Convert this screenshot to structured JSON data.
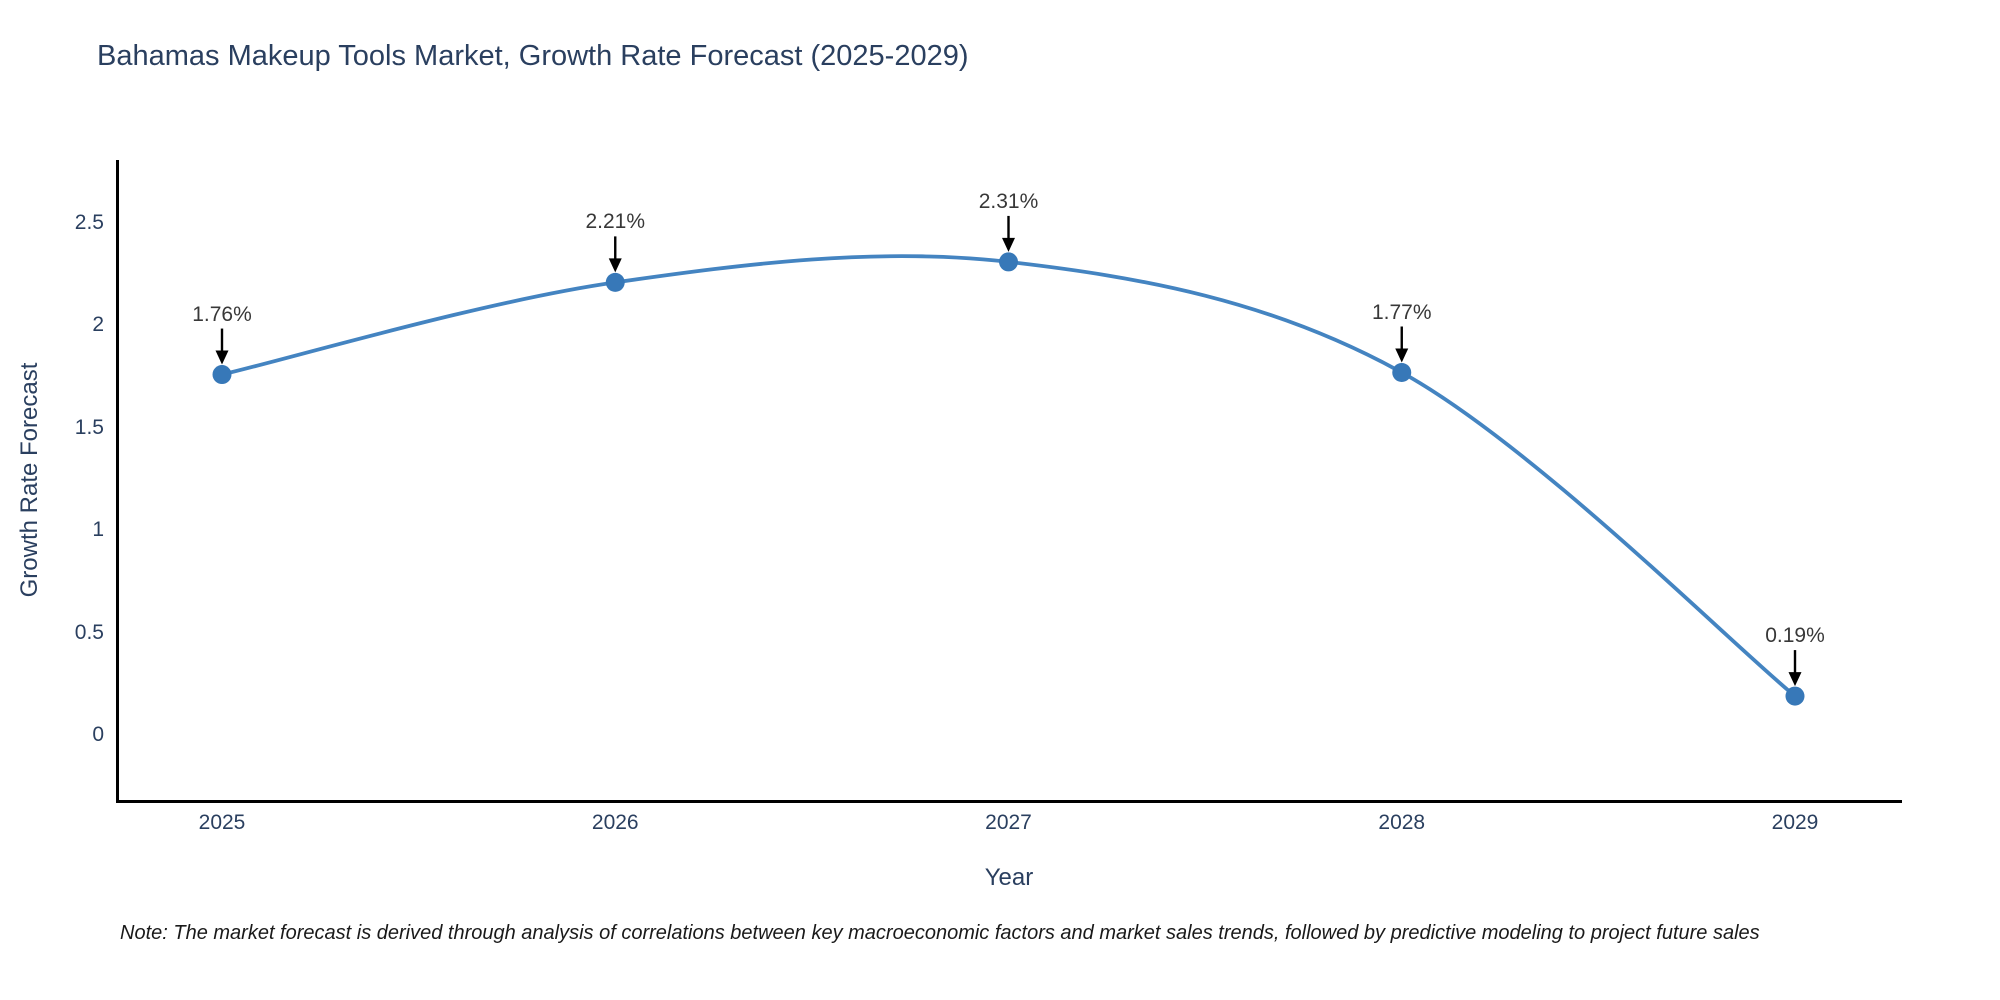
{
  "title": "Bahamas Makeup Tools Market, Growth Rate Forecast (2025-2029)",
  "note": "Note: The market forecast is derived through analysis of correlations between key macroeconomic factors and market sales trends, followed by predictive modeling to project future sales",
  "chart_data": {
    "type": "line",
    "title": "Bahamas Makeup Tools Market, Growth Rate Forecast (2025-2029)",
    "xlabel": "Year",
    "ylabel": "Growth Rate Forecast",
    "x": [
      2025,
      2026,
      2027,
      2028,
      2029
    ],
    "x_tick_labels": [
      "2025",
      "2026",
      "2027",
      "2028",
      "2029"
    ],
    "series": [
      {
        "name": "Growth Rate Forecast",
        "values": [
          1.76,
          2.21,
          2.31,
          1.77,
          0.19
        ]
      }
    ],
    "point_labels": [
      "1.76%",
      "2.21%",
      "2.31%",
      "1.77%",
      "0.19%"
    ],
    "yticks": [
      0,
      0.5,
      1,
      1.5,
      2,
      2.5
    ],
    "ytick_labels": [
      "0",
      "0.5",
      "1",
      "1.5",
      "2",
      "2.5"
    ],
    "ylim": [
      -0.32,
      2.81
    ],
    "xlim": [
      2024.74,
      2029.27
    ],
    "grid": false,
    "legend": false,
    "line_shape": "spline",
    "annotations_have_arrows": true,
    "colors": {
      "line": "#4484c1",
      "marker": "#3778b8",
      "arrow": "#000000",
      "axis_line": "#000000",
      "axis_text": "#2a3f5f",
      "annotation_text": "#383838",
      "background": "#ffffff"
    }
  }
}
